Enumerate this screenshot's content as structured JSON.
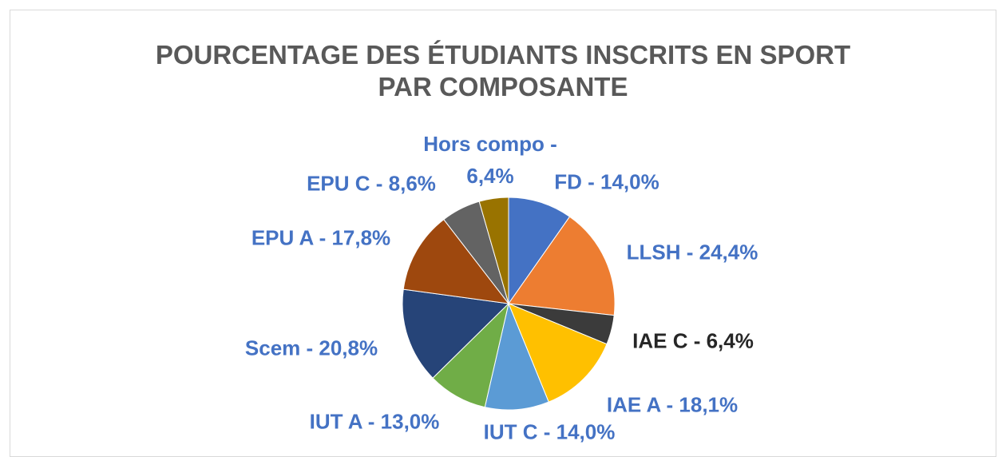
{
  "chart_data": {
    "type": "pie",
    "title": [
      "POURCENTAGE DES ÉTUDIANTS INSCRITS EN SPORT",
      "PAR COMPOSANTE"
    ],
    "values": [
      14.0,
      24.4,
      6.4,
      18.1,
      14.0,
      13.0,
      20.8,
      17.8,
      8.6,
      6.4
    ],
    "value_labels": [
      "FD - 14,0%",
      "LLSH - 24,4%",
      "IAE C - 6,4%",
      "IAE A - 18,1%",
      "IUT C -  14,0%",
      "IUT A -  13,0%",
      "Scem - 20,8%",
      "EPU A - 17,8%",
      "EPU C - 8,6%",
      "Hors compo - 6,4%"
    ],
    "colors": [
      "#4472c4",
      "#ed7d31",
      "#3b3b3b",
      "#ffc000",
      "#5b9bd5",
      "#70ad47",
      "#264478",
      "#9e480e",
      "#636363",
      "#997300"
    ],
    "label_colors": [
      "#4472c4",
      "#4472c4",
      "#262626",
      "#4472c4",
      "#4472c4",
      "#4472c4",
      "#4472c4",
      "#4472c4",
      "#4472c4",
      "#4472c4"
    ]
  }
}
